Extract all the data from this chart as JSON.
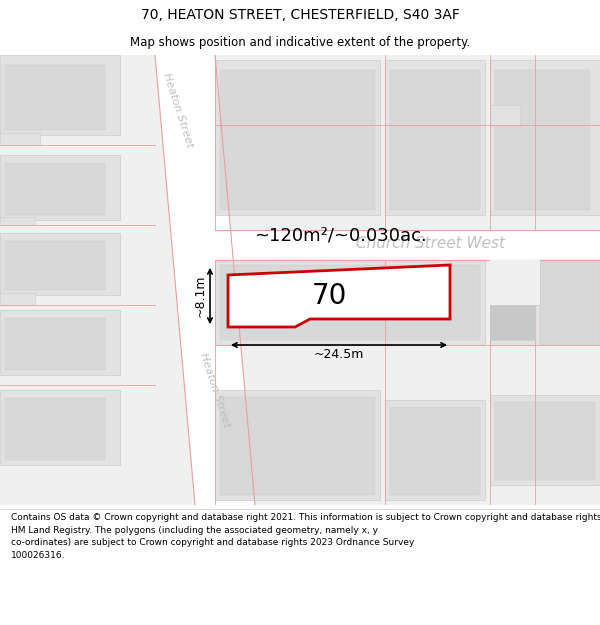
{
  "title": "70, HEATON STREET, CHESTERFIELD, S40 3AF",
  "subtitle": "Map shows position and indicative extent of the property.",
  "footer": "Contains OS data © Crown copyright and database right 2021. This information is subject to Crown copyright and database rights 2023 and is reproduced with the permission of\nHM Land Registry. The polygons (including the associated geometry, namely x, y\nco-ordinates) are subject to Crown copyright and database rights 2023 Ordnance Survey\n100026316.",
  "road_color": "#ffffff",
  "road_border": "#e8a0a0",
  "building_fill": "#e2e2e2",
  "building_inner": "#d8d8d8",
  "map_bg": "#f0f0f0",
  "prop_edge": "#cc0000",
  "area_label": "~120m²/~0.030ac.",
  "property_label": "70",
  "dim_width": "~24.5m",
  "dim_height": "~8.1m",
  "street_color": "#c0c0c0",
  "title_fontsize": 10,
  "subtitle_fontsize": 8.5,
  "footer_fontsize": 6.5
}
